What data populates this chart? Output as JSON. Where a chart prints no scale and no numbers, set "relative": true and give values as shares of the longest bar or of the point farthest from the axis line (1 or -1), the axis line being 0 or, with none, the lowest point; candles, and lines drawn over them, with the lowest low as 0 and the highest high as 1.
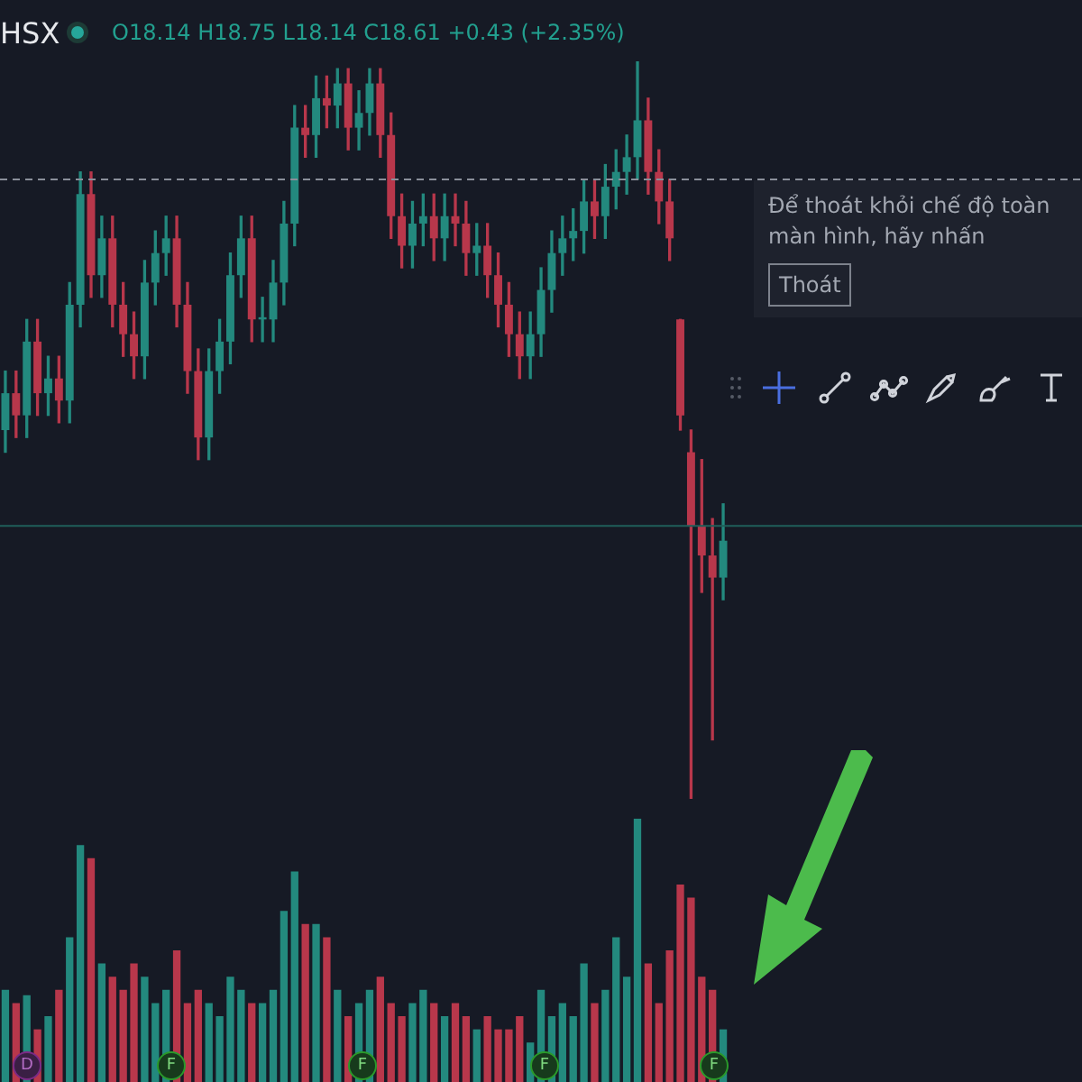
{
  "chart_data": [
    {
      "type": "candlestick",
      "relative": true,
      "title": "HSX",
      "subtitle": "O18.14 H18.75 L18.14 C18.61 +0.43 (+2.35%)",
      "annotations": [
        "Để thoát khỏi chế độ toàn màn hình, hãy nhấn",
        "Thoát"
      ],
      "categories": [
        null,
        null,
        null,
        null,
        null,
        null,
        null,
        null,
        null,
        null,
        null,
        null,
        null,
        null,
        null,
        null,
        null,
        null,
        null,
        null,
        null,
        null,
        null,
        null,
        null,
        null,
        null,
        null,
        null,
        null,
        null,
        null,
        null,
        null,
        null,
        null,
        null,
        null,
        null,
        null,
        null,
        null,
        null,
        null,
        null,
        null,
        null,
        null,
        null,
        null,
        null,
        null,
        null,
        null,
        null,
        null,
        null,
        null,
        null,
        null,
        null,
        null,
        null,
        null,
        null,
        null,
        null,
        null
      ],
      "ohlc": [
        [
          0.5,
          0.58,
          0.47,
          0.55
        ],
        [
          0.55,
          0.58,
          0.49,
          0.52
        ],
        [
          0.52,
          0.65,
          0.49,
          0.62
        ],
        [
          0.62,
          0.65,
          0.52,
          0.55
        ],
        [
          0.55,
          0.6,
          0.52,
          0.57
        ],
        [
          0.57,
          0.6,
          0.51,
          0.54
        ],
        [
          0.54,
          0.7,
          0.51,
          0.67
        ],
        [
          0.67,
          0.85,
          0.64,
          0.82
        ],
        [
          0.82,
          0.85,
          0.68,
          0.71
        ],
        [
          0.71,
          0.79,
          0.68,
          0.76
        ],
        [
          0.76,
          0.79,
          0.64,
          0.67
        ],
        [
          0.67,
          0.7,
          0.6,
          0.63
        ],
        [
          0.63,
          0.66,
          0.57,
          0.6
        ],
        [
          0.6,
          0.73,
          0.57,
          0.7
        ],
        [
          0.7,
          0.77,
          0.67,
          0.74
        ],
        [
          0.74,
          0.79,
          0.71,
          0.76
        ],
        [
          0.76,
          0.79,
          0.64,
          0.67
        ],
        [
          0.67,
          0.7,
          0.55,
          0.58
        ],
        [
          0.58,
          0.61,
          0.46,
          0.49
        ],
        [
          0.49,
          0.61,
          0.46,
          0.58
        ],
        [
          0.58,
          0.65,
          0.55,
          0.62
        ],
        [
          0.62,
          0.74,
          0.59,
          0.71
        ],
        [
          0.71,
          0.79,
          0.68,
          0.76
        ],
        [
          0.76,
          0.79,
          0.62,
          0.65
        ],
        [
          0.65,
          0.68,
          0.62,
          0.65
        ],
        [
          0.65,
          0.73,
          0.62,
          0.7
        ],
        [
          0.7,
          0.81,
          0.67,
          0.78
        ],
        [
          0.78,
          0.94,
          0.75,
          0.91
        ],
        [
          0.91,
          0.94,
          0.87,
          0.9
        ],
        [
          0.9,
          0.98,
          0.87,
          0.95
        ],
        [
          0.95,
          0.98,
          0.91,
          0.94
        ],
        [
          0.94,
          0.99,
          0.91,
          0.97
        ],
        [
          0.97,
          0.99,
          0.88,
          0.91
        ],
        [
          0.91,
          0.96,
          0.88,
          0.93
        ],
        [
          0.93,
          0.99,
          0.9,
          0.97
        ],
        [
          0.97,
          0.99,
          0.87,
          0.9
        ],
        [
          0.9,
          0.93,
          0.76,
          0.79
        ],
        [
          0.79,
          0.82,
          0.72,
          0.75
        ],
        [
          0.75,
          0.81,
          0.72,
          0.78
        ],
        [
          0.78,
          0.82,
          0.75,
          0.79
        ],
        [
          0.79,
          0.82,
          0.73,
          0.76
        ],
        [
          0.76,
          0.82,
          0.73,
          0.79
        ],
        [
          0.79,
          0.82,
          0.75,
          0.78
        ],
        [
          0.78,
          0.81,
          0.71,
          0.74
        ],
        [
          0.74,
          0.78,
          0.71,
          0.75
        ],
        [
          0.75,
          0.78,
          0.68,
          0.71
        ],
        [
          0.71,
          0.74,
          0.64,
          0.67
        ],
        [
          0.67,
          0.7,
          0.6,
          0.63
        ],
        [
          0.63,
          0.66,
          0.57,
          0.6
        ],
        [
          0.6,
          0.66,
          0.57,
          0.63
        ],
        [
          0.63,
          0.72,
          0.6,
          0.69
        ],
        [
          0.69,
          0.77,
          0.66,
          0.74
        ],
        [
          0.74,
          0.79,
          0.71,
          0.76
        ],
        [
          0.76,
          0.8,
          0.73,
          0.77
        ],
        [
          0.77,
          0.84,
          0.74,
          0.81
        ],
        [
          0.81,
          0.84,
          0.76,
          0.79
        ],
        [
          0.79,
          0.86,
          0.76,
          0.83
        ],
        [
          0.83,
          0.88,
          0.8,
          0.85
        ],
        [
          0.85,
          0.9,
          0.82,
          0.87
        ],
        [
          0.87,
          1.0,
          0.84,
          0.92
        ],
        [
          0.92,
          0.95,
          0.82,
          0.85
        ],
        [
          0.85,
          0.88,
          0.78,
          0.81
        ],
        [
          0.81,
          0.84,
          0.73,
          0.76
        ],
        [
          0.65,
          0.65,
          0.5,
          0.52
        ],
        [
          0.47,
          0.5,
          0.0,
          0.37
        ],
        [
          0.37,
          0.46,
          0.28,
          0.33
        ],
        [
          0.33,
          0.38,
          0.08,
          0.3
        ],
        [
          0.3,
          0.4,
          0.27,
          0.35
        ]
      ],
      "colors": [
        "#23897e",
        "#b8374b",
        "#23897e",
        "#b8374b",
        "#23897e",
        "#b8374b",
        "#23897e",
        "#23897e",
        "#b8374b",
        "#23897e",
        "#b8374b",
        "#b8374b",
        "#b8374b",
        "#23897e",
        "#23897e",
        "#23897e",
        "#b8374b",
        "#b8374b",
        "#b8374b",
        "#23897e",
        "#23897e",
        "#23897e",
        "#23897e",
        "#b8374b",
        "#23897e",
        "#23897e",
        "#23897e",
        "#23897e",
        "#b8374b",
        "#23897e",
        "#b8374b",
        "#23897e",
        "#b8374b",
        "#23897e",
        "#23897e",
        "#b8374b",
        "#b8374b",
        "#b8374b",
        "#23897e",
        "#23897e",
        "#b8374b",
        "#23897e",
        "#b8374b",
        "#b8374b",
        "#23897e",
        "#b8374b",
        "#b8374b",
        "#b8374b",
        "#b8374b",
        "#23897e",
        "#23897e",
        "#23897e",
        "#23897e",
        "#23897e",
        "#23897e",
        "#b8374b",
        "#23897e",
        "#23897e",
        "#23897e",
        "#23897e",
        "#b8374b",
        "#b8374b",
        "#b8374b",
        "#b8374b",
        "#b8374b",
        "#b8374b",
        "#b8374b",
        "#23897e"
      ],
      "ref_lines": [
        {
          "axis": "y",
          "value": 0.84,
          "color": "#8a8f9a",
          "line_style": "dashed"
        },
        {
          "axis": "y",
          "value": 0.37,
          "color": "#1f5f5a",
          "line_style": "solid"
        }
      ]
    },
    {
      "type": "bar",
      "relative": true,
      "annotations": [
        "D",
        "F",
        "F",
        "F",
        "F"
      ],
      "categories": [
        null,
        null,
        null,
        null,
        null,
        null,
        null,
        null,
        null,
        null,
        null,
        null,
        null,
        null,
        null,
        null,
        null,
        null,
        null,
        null,
        null,
        null,
        null,
        null,
        null,
        null,
        null,
        null,
        null,
        null,
        null,
        null,
        null,
        null,
        null,
        null,
        null,
        null,
        null,
        null,
        null,
        null,
        null,
        null,
        null,
        null,
        null,
        null,
        null,
        null,
        null,
        null,
        null,
        null,
        null,
        null,
        null,
        null,
        null,
        null,
        null,
        null,
        null,
        null,
        null,
        null,
        null,
        null
      ],
      "values": [
        0.35,
        0.3,
        0.33,
        0.2,
        0.25,
        0.35,
        0.55,
        0.9,
        0.85,
        0.45,
        0.4,
        0.35,
        0.45,
        0.4,
        0.3,
        0.35,
        0.5,
        0.3,
        0.35,
        0.3,
        0.25,
        0.4,
        0.35,
        0.3,
        0.3,
        0.35,
        0.65,
        0.8,
        0.6,
        0.6,
        0.55,
        0.35,
        0.25,
        0.3,
        0.35,
        0.4,
        0.3,
        0.25,
        0.3,
        0.35,
        0.3,
        0.25,
        0.3,
        0.25,
        0.2,
        0.25,
        0.2,
        0.2,
        0.25,
        0.15,
        0.35,
        0.25,
        0.3,
        0.25,
        0.45,
        0.3,
        0.35,
        0.55,
        0.4,
        1.0,
        0.45,
        0.3,
        0.5,
        0.75,
        0.7,
        0.4,
        0.35,
        0.2
      ],
      "colors": [
        "#23897e",
        "#b8374b",
        "#23897e",
        "#b8374b",
        "#23897e",
        "#b8374b",
        "#23897e",
        "#23897e",
        "#b8374b",
        "#23897e",
        "#b8374b",
        "#b8374b",
        "#b8374b",
        "#23897e",
        "#23897e",
        "#23897e",
        "#b8374b",
        "#b8374b",
        "#b8374b",
        "#23897e",
        "#23897e",
        "#23897e",
        "#23897e",
        "#b8374b",
        "#23897e",
        "#23897e",
        "#23897e",
        "#23897e",
        "#b8374b",
        "#23897e",
        "#b8374b",
        "#23897e",
        "#b8374b",
        "#23897e",
        "#23897e",
        "#b8374b",
        "#b8374b",
        "#b8374b",
        "#23897e",
        "#23897e",
        "#b8374b",
        "#23897e",
        "#b8374b",
        "#b8374b",
        "#23897e",
        "#b8374b",
        "#b8374b",
        "#b8374b",
        "#b8374b",
        "#23897e",
        "#23897e",
        "#23897e",
        "#23897e",
        "#23897e",
        "#23897e",
        "#b8374b",
        "#23897e",
        "#23897e",
        "#23897e",
        "#23897e",
        "#b8374b",
        "#b8374b",
        "#b8374b",
        "#b8374b",
        "#b8374b",
        "#b8374b",
        "#b8374b",
        "#23897e"
      ]
    }
  ]
}
